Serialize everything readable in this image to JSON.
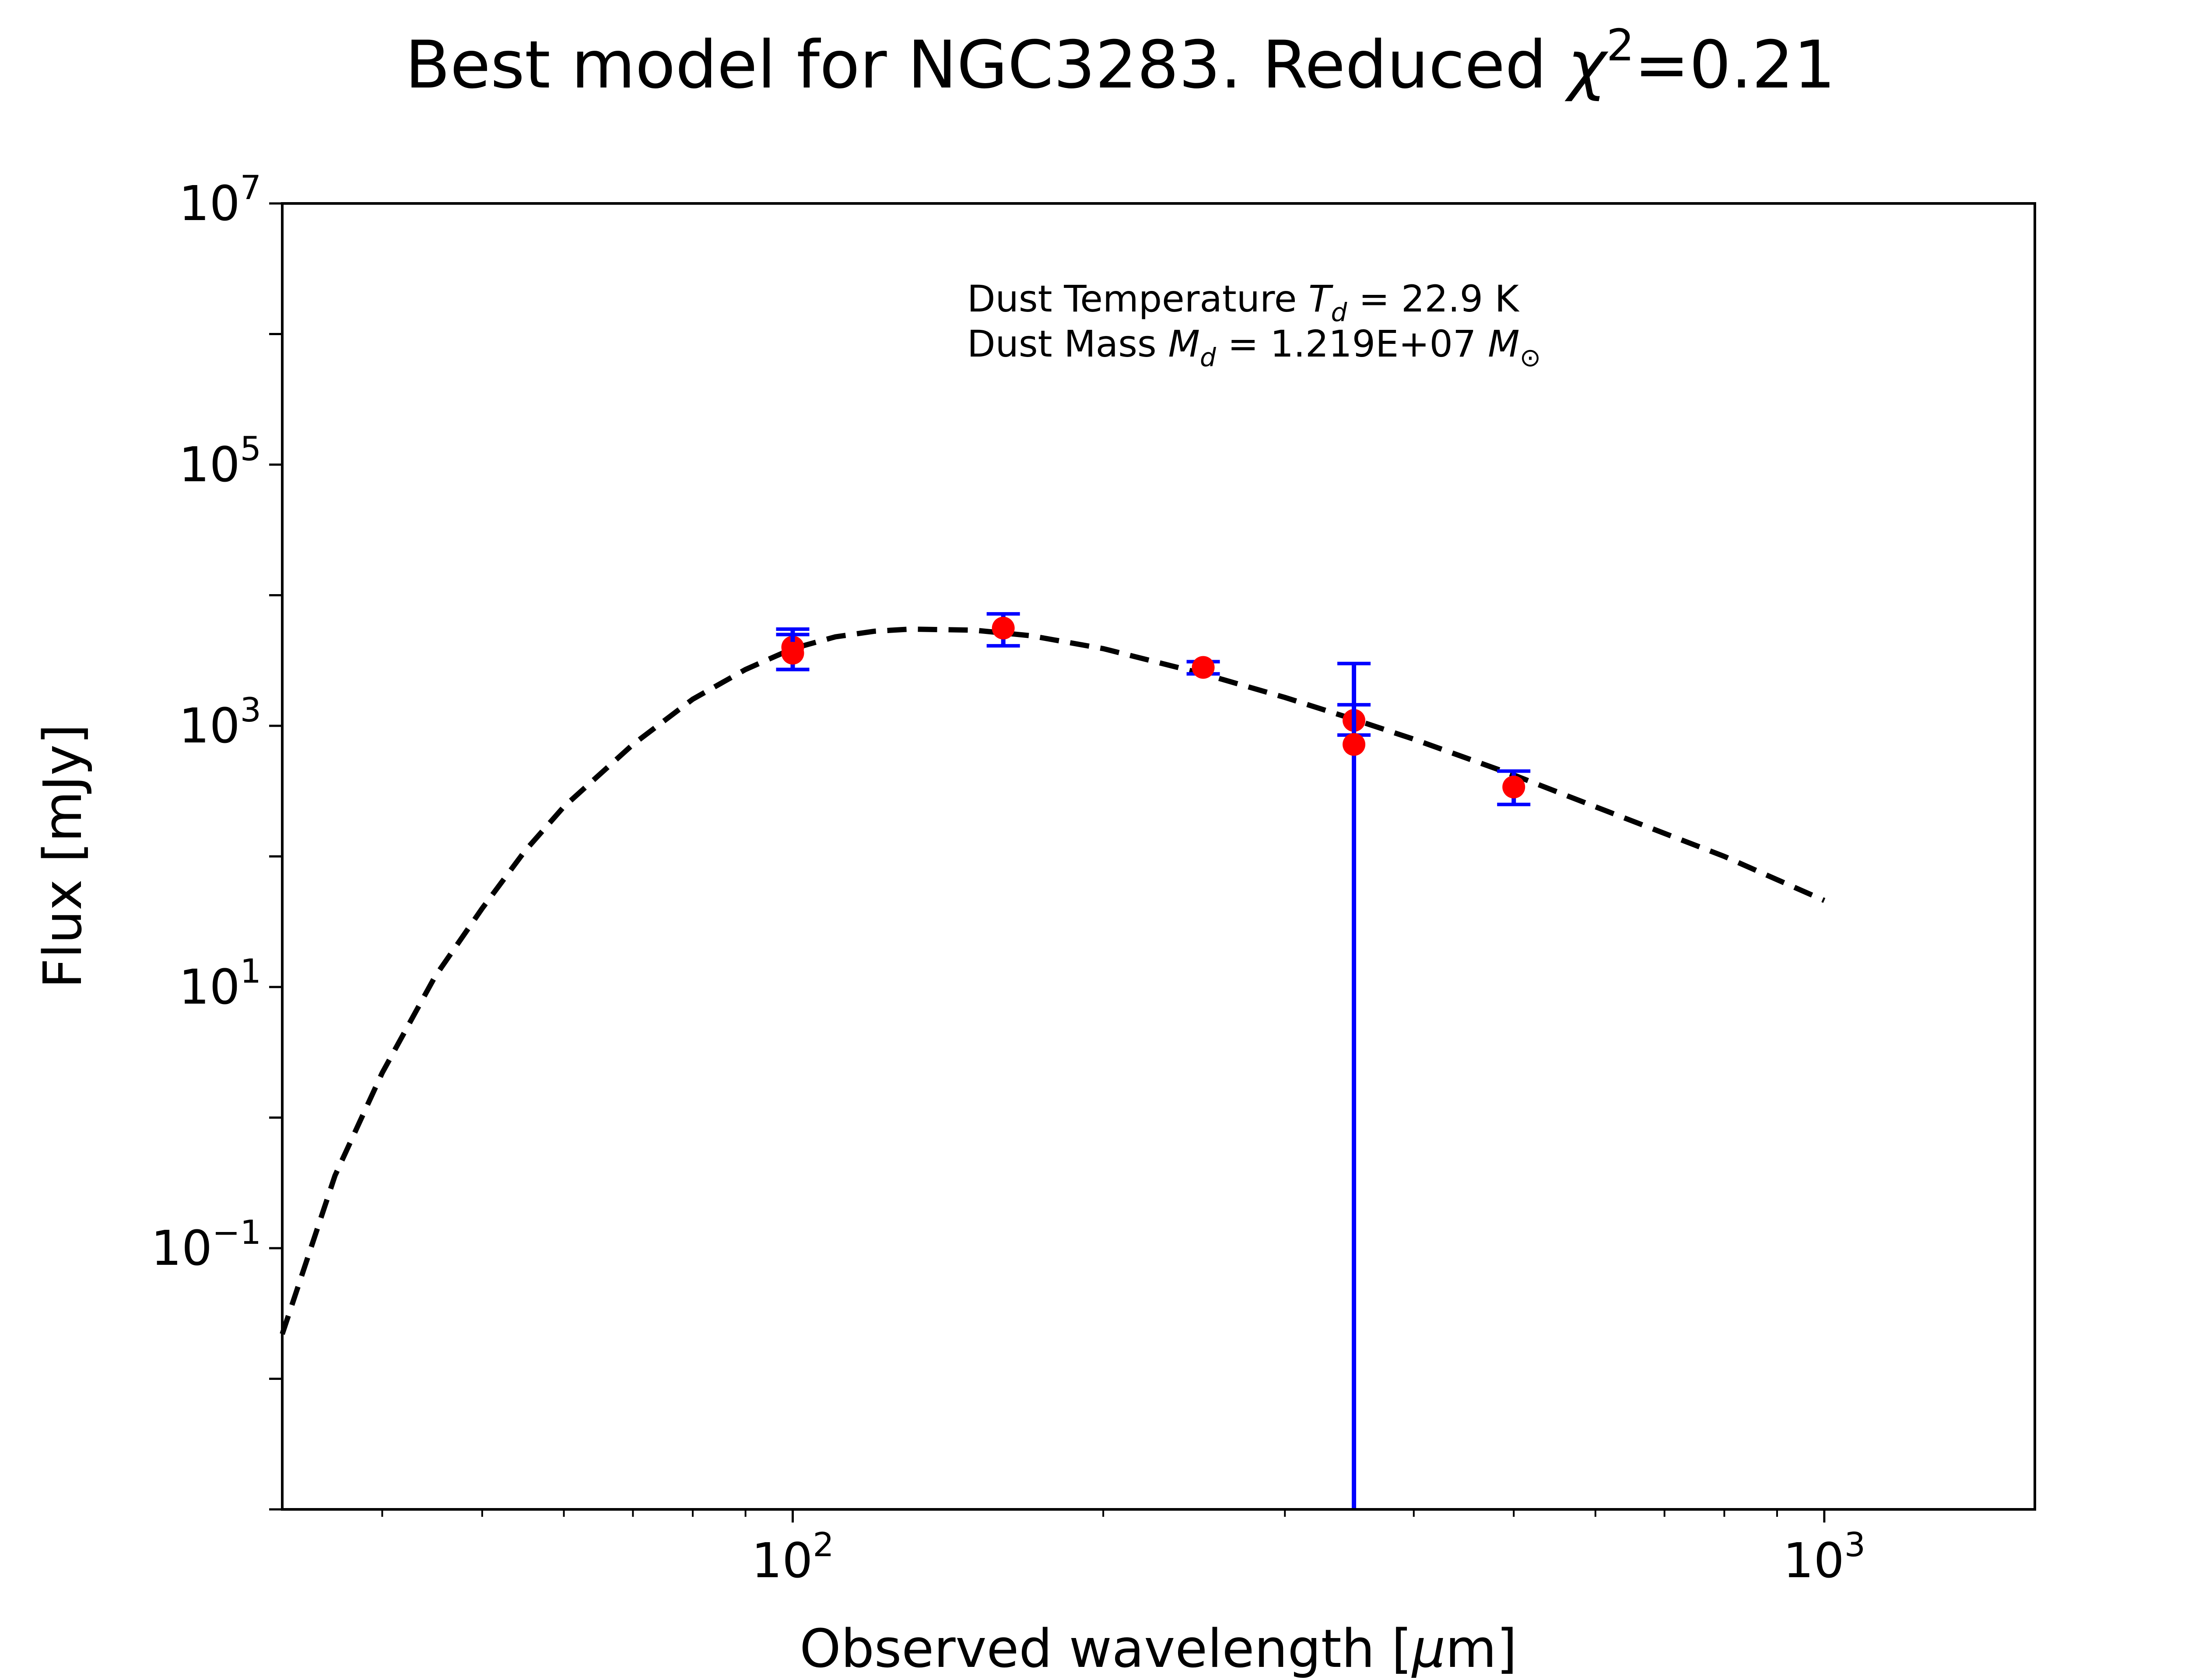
{
  "chart_data": {
    "type": "scatter",
    "title_main": "Best model for NGC3283. Reduced ",
    "title_chi": "χ",
    "title_exp": "2",
    "title_value": "=0.21",
    "xlabel_main": "Observed wavelength [",
    "xlabel_mu": "μ",
    "xlabel_unit": "m]",
    "ylabel": "Flux [mJy]",
    "xscale": "log",
    "yscale": "log",
    "xlim": [
      32,
      1600
    ],
    "ylim": [
      0.001,
      10000000
    ],
    "grid": false,
    "x_ticks": [
      {
        "value": 100,
        "base": "10",
        "exp": "2"
      },
      {
        "value": 1000,
        "base": "10",
        "exp": "3"
      }
    ],
    "y_ticks": [
      {
        "value": 0.1,
        "base": "10",
        "exp": "−1"
      },
      {
        "value": 10,
        "base": "10",
        "exp": "1"
      },
      {
        "value": 1000,
        "base": "10",
        "exp": "3"
      },
      {
        "value": 100000,
        "base": "10",
        "exp": "5"
      },
      {
        "value": 10000000,
        "base": "10",
        "exp": "7"
      }
    ],
    "annotation": {
      "line1_prefix": "Dust Temperature ",
      "line1_sym": "T",
      "line1_sub": "d",
      "line1_value": " = 22.9 K",
      "line2_prefix": "Dust Mass ",
      "line2_sym": "M",
      "line2_sub": "d",
      "line2_value": " = 1.219E+07 ",
      "line2_unit_sym": "M",
      "line2_unit_sub": "⊙"
    },
    "series": [
      {
        "style": "model-curve",
        "color": "#000000",
        "dash": true,
        "x": [
          32,
          36,
          40,
          45,
          50,
          55,
          60,
          70,
          80,
          90,
          100,
          110,
          120,
          130,
          150,
          170,
          200,
          250,
          300,
          350,
          400,
          500,
          600,
          700,
          800,
          1000
        ],
        "y": [
          0.022,
          0.36,
          2.2,
          12,
          40,
          110,
          240,
          720,
          1600,
          2700,
          3900,
          4800,
          5300,
          5500,
          5400,
          4900,
          3900,
          2500,
          1650,
          1120,
          790,
          420,
          240,
          150,
          100,
          46
        ]
      },
      {
        "style": "observations",
        "marker_color": "#ff0000",
        "error_color": "#0000ff",
        "points": [
          {
            "x": 100,
            "y": 4000,
            "y_low": 2700,
            "y_high": 5500
          },
          {
            "x": 100,
            "y": 3600,
            "y_low": 2700,
            "y_high": 5000
          },
          {
            "x": 160,
            "y": 5600,
            "y_low": 4100,
            "y_high": 7200
          },
          {
            "x": 250,
            "y": 2800,
            "y_low": 2500,
            "y_high": 3100
          },
          {
            "x": 350,
            "y": 1100,
            "y_low": 850,
            "y_high": 1450
          },
          {
            "x": 350,
            "y": 720,
            "y_low": 0.001,
            "y_high": 3000
          },
          {
            "x": 500,
            "y": 340,
            "y_low": 250,
            "y_high": 450
          }
        ]
      }
    ]
  }
}
